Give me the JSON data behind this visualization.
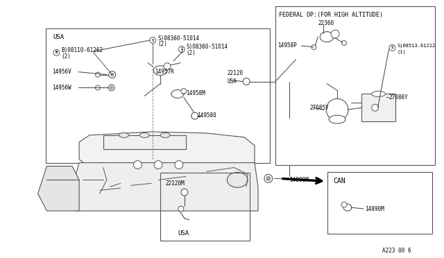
{
  "bg_color": "#ffffff",
  "lc": "#555555",
  "tc": "#000000",
  "fig_width": 6.4,
  "fig_height": 3.72,
  "dpi": 100,
  "diagram_id": "A223 00 6",
  "labels": {
    "federal_title": "FEDERAL OP:(FOR HIGH ALTITUDE)",
    "p22360": "22360",
    "p14958P": "14958P",
    "p08513": "S)08513-61212",
    "p08513_qty": "(1)",
    "p27086Y": "27086Y",
    "p27085Y": "27085Y",
    "pCAN": "CAN",
    "p14890M_can": "14890M",
    "p14890M": "14890M",
    "usa_top": "USA",
    "usa_bot": "USA",
    "usa_mid": "USA",
    "p08110": "B)08110-61262",
    "p08110_qty": "(2)",
    "p08360_1": "S)08360-51014",
    "p08360_1_qty": "(2)",
    "p08360_2": "S)08360-51014",
    "p08360_2_qty": "(2)",
    "p14956V": "14956V",
    "p14956W": "14956W",
    "p14957R": "14957R",
    "p14958M": "14958M",
    "p22120": "22120",
    "p149580": "149580",
    "p22120M": "22120M"
  }
}
